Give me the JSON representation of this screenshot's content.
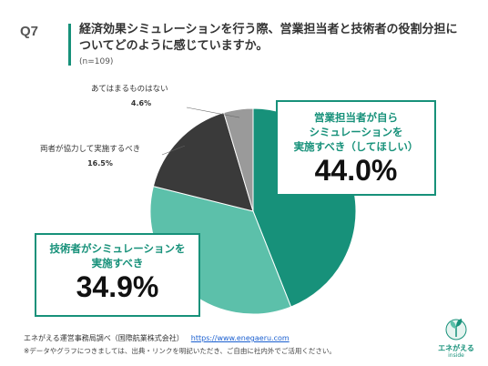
{
  "header": {
    "question_number": "Q7",
    "title": "経済効果シミュレーションを行う際、営業担当者と技術者の役割分担についてどのように感じていますか。",
    "sample_size": "(n=109)"
  },
  "chart_data": {
    "type": "pie",
    "start_angle_deg": 0,
    "direction": "clockwise",
    "slices": [
      {
        "label": "営業担当者が自らシミュレーションを実施すべき（してほしい）",
        "value": 44.0,
        "display": "44.0%",
        "color": "#17917a"
      },
      {
        "label": "技術者がシミュレーションを実施すべき",
        "value": 34.9,
        "display": "34.9%",
        "color": "#5cc0aa"
      },
      {
        "label": "両者が協力して実施するべき",
        "value": 16.5,
        "display": "16.5%",
        "color": "#3a3a3a"
      },
      {
        "label": "あてはまるものはない",
        "value": 4.6,
        "display": "4.6%",
        "color": "#9a9a9a"
      }
    ]
  },
  "callouts": {
    "sales_label": "営業担当者が自ら\nシミュレーションを\n実施すべき（してほしい）",
    "tech_label": "技術者がシミュレーションを\n実施すべき"
  },
  "footer": {
    "source": "エネがえる運営事務局調べ（国際航業株式会社）",
    "url": "https://www.enegaeru.com",
    "note": "※データやグラフにつきましては、出典・リンクを明記いただき、ご自由に社内外でご活用ください。"
  },
  "logo": {
    "name": "エネがえる",
    "sub": "inside"
  }
}
